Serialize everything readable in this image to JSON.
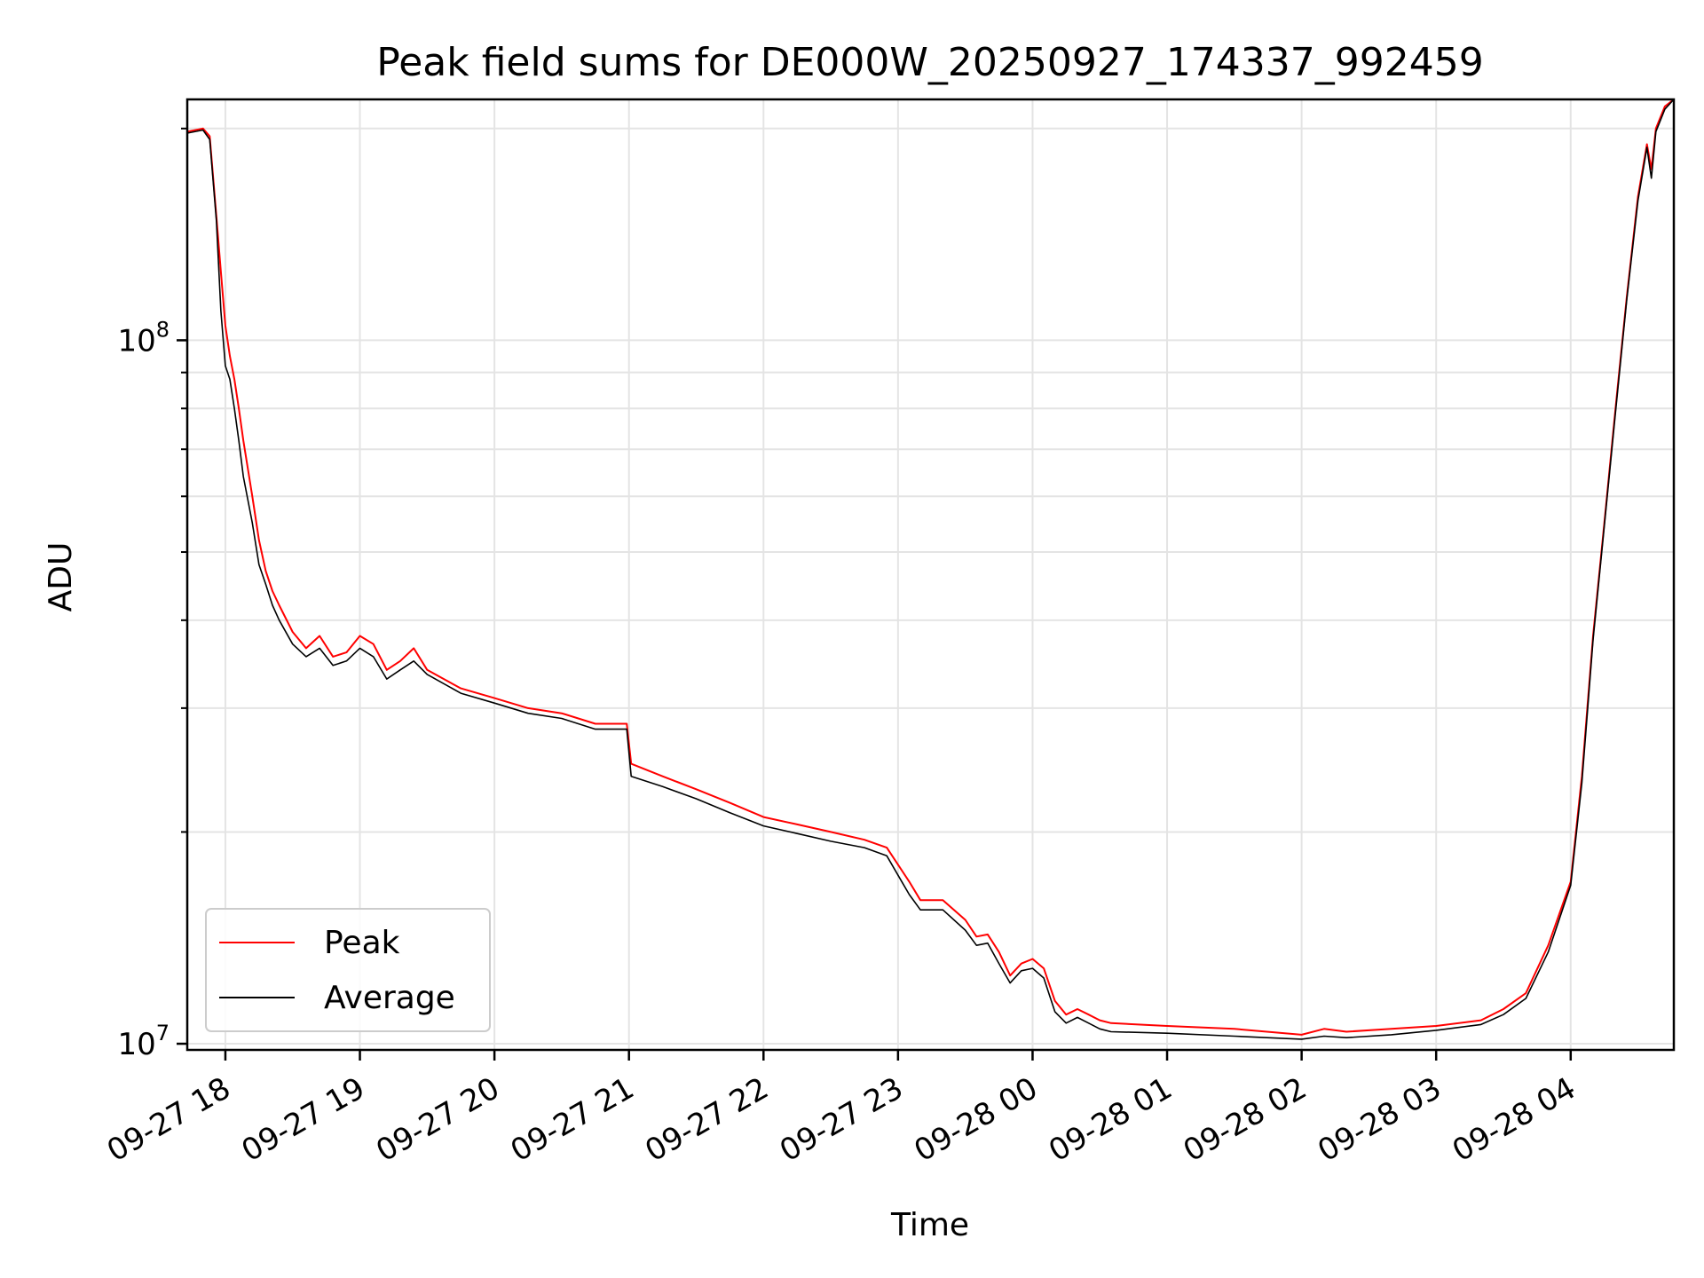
{
  "chart_data": {
    "type": "line",
    "title": "Peak field sums for DE000W_20250927_174337_992459",
    "xlabel": "Time",
    "ylabel": "ADU",
    "yscale": "log",
    "ylim": [
      9800000,
      220000000
    ],
    "xlim": [
      "2025-09-27 17:43",
      "2025-09-28 04:46"
    ],
    "grid": true,
    "legend_position": "lower-left",
    "x_ticks": [
      "09-27 18",
      "09-27 19",
      "09-27 20",
      "09-27 21",
      "09-27 22",
      "09-27 23",
      "09-28 00",
      "09-28 01",
      "09-28 02",
      "09-28 03",
      "09-28 04"
    ],
    "y_ticks": [
      {
        "value": 10000000,
        "base": "10",
        "exp": "7"
      },
      {
        "value": 100000000,
        "base": "10",
        "exp": "8"
      }
    ],
    "series": [
      {
        "name": "Peak",
        "color": "#ff0000",
        "x": [
          "2025-09-27 17:43",
          "2025-09-27 17:50",
          "2025-09-27 17:53",
          "2025-09-27 17:56",
          "2025-09-27 17:58",
          "2025-09-27 18:00",
          "2025-09-27 18:02",
          "2025-09-27 18:04",
          "2025-09-27 18:06",
          "2025-09-27 18:08",
          "2025-09-27 18:12",
          "2025-09-27 18:15",
          "2025-09-27 18:18",
          "2025-09-27 18:21",
          "2025-09-27 18:24",
          "2025-09-27 18:30",
          "2025-09-27 18:36",
          "2025-09-27 18:42",
          "2025-09-27 18:48",
          "2025-09-27 18:54",
          "2025-09-27 19:00",
          "2025-09-27 19:06",
          "2025-09-27 19:12",
          "2025-09-27 19:18",
          "2025-09-27 19:24",
          "2025-09-27 19:30",
          "2025-09-27 19:45",
          "2025-09-27 20:00",
          "2025-09-27 20:15",
          "2025-09-27 20:30",
          "2025-09-27 20:45",
          "2025-09-27 20:59",
          "2025-09-27 21:01",
          "2025-09-27 21:15",
          "2025-09-27 21:30",
          "2025-09-27 21:45",
          "2025-09-27 22:00",
          "2025-09-27 22:15",
          "2025-09-27 22:30",
          "2025-09-27 22:45",
          "2025-09-27 22:55",
          "2025-09-27 23:05",
          "2025-09-27 23:10",
          "2025-09-27 23:20",
          "2025-09-27 23:30",
          "2025-09-27 23:35",
          "2025-09-27 23:40",
          "2025-09-27 23:45",
          "2025-09-27 23:50",
          "2025-09-27 23:55",
          "2025-09-28 00:00",
          "2025-09-28 00:05",
          "2025-09-28 00:10",
          "2025-09-28 00:15",
          "2025-09-28 00:20",
          "2025-09-28 00:25",
          "2025-09-28 00:30",
          "2025-09-28 00:35",
          "2025-09-28 01:00",
          "2025-09-28 01:30",
          "2025-09-28 02:00",
          "2025-09-28 02:10",
          "2025-09-28 02:20",
          "2025-09-28 02:40",
          "2025-09-28 03:00",
          "2025-09-28 03:20",
          "2025-09-28 03:30",
          "2025-09-28 03:40",
          "2025-09-28 03:50",
          "2025-09-28 04:00",
          "2025-09-28 04:05",
          "2025-09-28 04:10",
          "2025-09-28 04:15",
          "2025-09-28 04:20",
          "2025-09-28 04:25",
          "2025-09-28 04:30",
          "2025-09-28 04:34",
          "2025-09-28 04:36",
          "2025-09-28 04:38",
          "2025-09-28 04:42",
          "2025-09-28 04:46"
        ],
        "y": [
          198000000,
          200000000,
          195000000,
          150000000,
          125000000,
          105000000,
          95000000,
          88000000,
          80000000,
          72000000,
          60000000,
          52000000,
          47000000,
          44000000,
          42000000,
          38500000,
          36500000,
          38000000,
          35500000,
          36000000,
          38000000,
          37000000,
          34000000,
          35000000,
          36500000,
          34000000,
          32000000,
          31000000,
          30000000,
          29500000,
          28500000,
          28500000,
          25000000,
          24000000,
          23000000,
          22000000,
          21000000,
          20500000,
          20000000,
          19500000,
          19000000,
          17000000,
          16000000,
          16000000,
          15000000,
          14200000,
          14300000,
          13500000,
          12500000,
          13000000,
          13200000,
          12800000,
          11500000,
          11000000,
          11200000,
          11000000,
          10800000,
          10700000,
          10600000,
          10500000,
          10300000,
          10500000,
          10400000,
          10500000,
          10600000,
          10800000,
          11200000,
          11800000,
          13800000,
          17000000,
          24000000,
          38000000,
          55000000,
          80000000,
          115000000,
          160000000,
          190000000,
          175000000,
          200000000,
          215000000,
          220000000
        ]
      },
      {
        "name": "Average",
        "color": "#000000",
        "x": [
          "2025-09-27 17:43",
          "2025-09-27 17:50",
          "2025-09-27 17:53",
          "2025-09-27 17:56",
          "2025-09-27 17:58",
          "2025-09-27 18:00",
          "2025-09-27 18:02",
          "2025-09-27 18:04",
          "2025-09-27 18:06",
          "2025-09-27 18:08",
          "2025-09-27 18:12",
          "2025-09-27 18:15",
          "2025-09-27 18:18",
          "2025-09-27 18:21",
          "2025-09-27 18:24",
          "2025-09-27 18:30",
          "2025-09-27 18:36",
          "2025-09-27 18:42",
          "2025-09-27 18:48",
          "2025-09-27 18:54",
          "2025-09-27 19:00",
          "2025-09-27 19:06",
          "2025-09-27 19:12",
          "2025-09-27 19:18",
          "2025-09-27 19:24",
          "2025-09-27 19:30",
          "2025-09-27 19:45",
          "2025-09-27 20:00",
          "2025-09-27 20:15",
          "2025-09-27 20:30",
          "2025-09-27 20:45",
          "2025-09-27 20:59",
          "2025-09-27 21:01",
          "2025-09-27 21:15",
          "2025-09-27 21:30",
          "2025-09-27 21:45",
          "2025-09-27 22:00",
          "2025-09-27 22:15",
          "2025-09-27 22:30",
          "2025-09-27 22:45",
          "2025-09-27 22:55",
          "2025-09-27 23:05",
          "2025-09-27 23:10",
          "2025-09-27 23:20",
          "2025-09-27 23:30",
          "2025-09-27 23:35",
          "2025-09-27 23:40",
          "2025-09-27 23:45",
          "2025-09-27 23:50",
          "2025-09-27 23:55",
          "2025-09-28 00:00",
          "2025-09-28 00:05",
          "2025-09-28 00:10",
          "2025-09-28 00:15",
          "2025-09-28 00:20",
          "2025-09-28 00:25",
          "2025-09-28 00:30",
          "2025-09-28 00:35",
          "2025-09-28 01:00",
          "2025-09-28 01:30",
          "2025-09-28 02:00",
          "2025-09-28 02:10",
          "2025-09-28 02:20",
          "2025-09-28 02:40",
          "2025-09-28 03:00",
          "2025-09-28 03:20",
          "2025-09-28 03:30",
          "2025-09-28 03:40",
          "2025-09-28 03:50",
          "2025-09-28 04:00",
          "2025-09-28 04:05",
          "2025-09-28 04:10",
          "2025-09-28 04:15",
          "2025-09-28 04:20",
          "2025-09-28 04:25",
          "2025-09-28 04:30",
          "2025-09-28 04:34",
          "2025-09-28 04:36",
          "2025-09-28 04:38",
          "2025-09-28 04:42",
          "2025-09-28 04:46"
        ],
        "y": [
          197000000,
          199000000,
          193000000,
          148000000,
          110000000,
          92000000,
          88000000,
          80000000,
          72000000,
          64000000,
          55000000,
          48000000,
          45000000,
          42000000,
          40000000,
          37000000,
          35500000,
          36500000,
          34500000,
          35000000,
          36500000,
          35500000,
          33000000,
          34000000,
          35000000,
          33500000,
          31500000,
          30500000,
          29500000,
          29000000,
          28000000,
          28000000,
          24000000,
          23200000,
          22300000,
          21300000,
          20400000,
          19900000,
          19400000,
          19000000,
          18500000,
          16300000,
          15500000,
          15500000,
          14500000,
          13800000,
          13900000,
          13000000,
          12200000,
          12700000,
          12800000,
          12400000,
          11100000,
          10700000,
          10900000,
          10700000,
          10500000,
          10400000,
          10350000,
          10250000,
          10150000,
          10250000,
          10200000,
          10300000,
          10450000,
          10650000,
          11000000,
          11600000,
          13500000,
          16800000,
          23500000,
          37500000,
          54500000,
          79000000,
          114000000,
          158000000,
          188000000,
          170000000,
          198000000,
          213000000,
          220000000
        ]
      }
    ]
  }
}
